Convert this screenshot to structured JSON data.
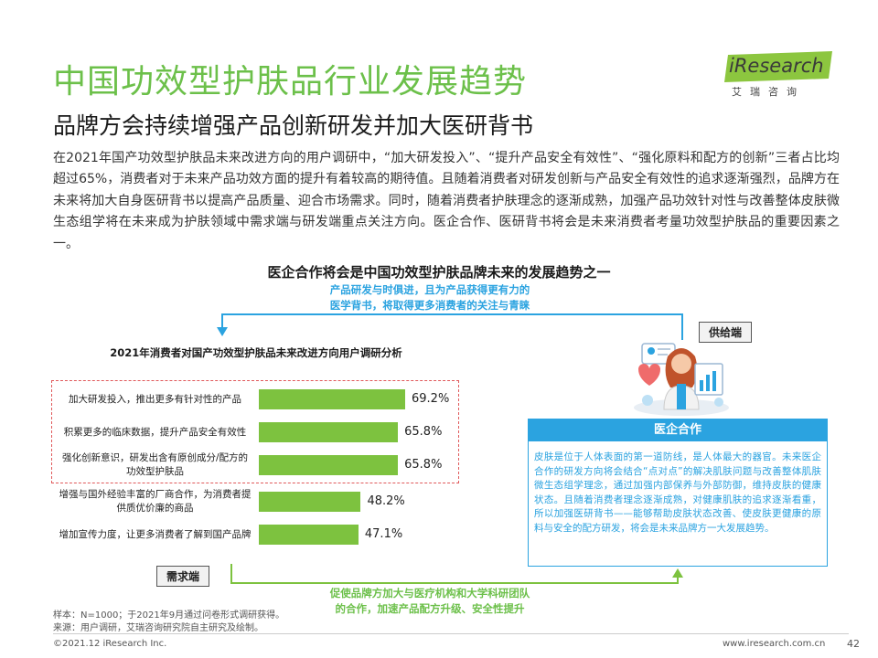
{
  "header": {
    "title": "中国功效型护肤品行业发展趋势",
    "subtitle": "品牌方会持续增强产品创新研发并加大医研背书",
    "paragraph": "在2021年国产功效型护肤品未来改进方向的用户调研中，“加大研发投入”、“提升产品安全有效性”、“强化原料和配方的创新”三者占比均超过65%，消费者对于未来产品功效方面的提升有着较高的期待值。且随着消费者对研发创新与产品安全有效性的追求逐渐强烈，品牌方在未来将加大自身医研背书以提高产品质量、迎合市场需求。同时，随着消费者护肤理念的逐渐成熟，加强产品功效针对性与改善整体皮肤微生态组学将在未来成为护肤领域中需求端与研发端重点关注方向。医企合作、医研背书将会是未来消费者考量功效型护肤品的重要因素之一。"
  },
  "logo": {
    "text": "iResearch",
    "sub": "艾瑞咨询"
  },
  "diagram": {
    "heading": "医企合作将会是中国功效型护肤品牌未来的发展趋势之一",
    "top_note_line1": "产品研发与时俱进，且为产品获得更有力的",
    "top_note_line2": "医学背书，将取得更多消费者的关注与青睐",
    "bottom_note_line1": "促使品牌方加大与医疗机构和大学科研团队",
    "bottom_note_line2": "的合作，加速产品配方升级、安全性提升",
    "supply_tag": "供给端",
    "demand_tag": "需求端",
    "info_title": "医企合作",
    "info_text": "皮肤是位于人体表面的第一道防线，是人体最大的器官。未来医企合作的研发方向将会结合“点对点”的解决肌肤问题与改善整体肌肤微生态组学理念，通过加强内部保养与外部防御，维持皮肤的健康状态。且随着消费者理念逐渐成熟，对健康肌肤的追求逐渐看重，所以加强医研背书——能够帮助皮肤状态改善、使皮肤更健康的原料与安全的配方研发，将会是未来品牌方一大发展趋势。",
    "colors": {
      "blue": "#2ba3e0",
      "green": "#7dc23f",
      "red_dashed": "#e0595b",
      "title_green": "#6cc04a"
    }
  },
  "chart_data": {
    "type": "bar",
    "orientation": "horizontal",
    "title": "2021年消费者对国产功效型护肤品未来改进方向用户调研分析",
    "categories": [
      "加大研发投入，推出更多有针对性的产品",
      "积累更多的临床数据，提升产品安全有效性",
      "强化创新意识，研发出含有原创成分/配方的功效型护肤品",
      "增强与国外经验丰富的厂商合作，为消费者提供质优价廉的商品",
      "增加宣传力度，让更多消费者了解到国产品牌"
    ],
    "category_lines": [
      [
        "加大研发投入，推出更多有针对性的产品"
      ],
      [
        "积累更多的临床数据，提升产品安全有效性"
      ],
      [
        "强化创新意识，研发出含有原创成分/配方的",
        "功效型护肤品"
      ],
      [
        "增强与国外经验丰富的厂商合作，为消费者提",
        "供质优价廉的商品"
      ],
      [
        "增加宣传力度，让更多消费者了解到国产品牌"
      ]
    ],
    "values": [
      69.2,
      65.8,
      65.8,
      48.2,
      47.1
    ],
    "value_labels": [
      "69.2%",
      "65.8%",
      "65.8%",
      "48.2%",
      "47.1%"
    ],
    "unit": "%",
    "highlighted_top": 3,
    "bar_color": "#7dc23f"
  },
  "footer": {
    "sample_note": "样本：N=1000；于2021年9月通过问卷形式调研获得。",
    "source_note": "来源：用户调研，艾瑞咨询研究院自主研究及绘制。",
    "copyright": "©2021.12 iResearch Inc.",
    "website": "www.iresearch.com.cn",
    "page_number": "42"
  }
}
